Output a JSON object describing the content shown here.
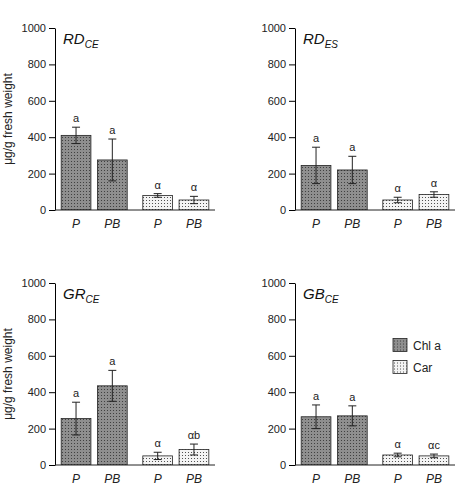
{
  "chart_data": [
    {
      "type": "bar",
      "title": "RD",
      "title_subscript": "CE",
      "y_label": "μg/g fresh weight",
      "categories": [
        "P",
        "PB"
      ],
      "ylim": [
        0,
        1000
      ],
      "yticks": [
        0,
        200,
        400,
        600,
        800,
        1000
      ],
      "grid": false,
      "series": [
        {
          "color": "#8f8f8f",
          "values": [
            410,
            275
          ],
          "errors": [
            45,
            115
          ],
          "letters": [
            "a",
            "a"
          ]
        },
        {
          "color": "#f4f4f4",
          "values": [
            80,
            55
          ],
          "errors": [
            10,
            20
          ],
          "letters": [
            "α",
            "α"
          ]
        }
      ]
    },
    {
      "type": "bar",
      "title": "RD",
      "title_subscript": "ES",
      "categories": [
        "P",
        "PB"
      ],
      "ylim": [
        0,
        1000
      ],
      "yticks": [
        0,
        200,
        400,
        600,
        800,
        1000
      ],
      "grid": false,
      "series": [
        {
          "color": "#8f8f8f",
          "values": [
            245,
            220
          ],
          "errors": [
            100,
            75
          ],
          "letters": [
            "a",
            "a"
          ]
        },
        {
          "color": "#f4f4f4",
          "values": [
            55,
            85
          ],
          "errors": [
            15,
            15
          ],
          "letters": [
            "α",
            "α"
          ]
        }
      ]
    },
    {
      "type": "bar",
      "title": "GR",
      "title_subscript": "CE",
      "y_label": "μg/g fresh weight",
      "categories": [
        "P",
        "PB"
      ],
      "ylim": [
        0,
        1000
      ],
      "yticks": [
        0,
        200,
        400,
        600,
        800,
        1000
      ],
      "grid": false,
      "series": [
        {
          "color": "#8f8f8f",
          "values": [
            255,
            435
          ],
          "errors": [
            90,
            85
          ],
          "letters": [
            "a",
            "a"
          ]
        },
        {
          "color": "#f4f4f4",
          "values": [
            50,
            85
          ],
          "errors": [
            20,
            30
          ],
          "letters": [
            "α",
            "αb"
          ]
        }
      ]
    },
    {
      "type": "bar",
      "title": "GB",
      "title_subscript": "CE",
      "legend": "right",
      "categories": [
        "P",
        "PB"
      ],
      "ylim": [
        0,
        1000
      ],
      "yticks": [
        0,
        200,
        400,
        600,
        800,
        1000
      ],
      "grid": false,
      "series": [
        {
          "name": "Chl a",
          "color": "#8f8f8f",
          "values": [
            265,
            270
          ],
          "errors": [
            65,
            55
          ],
          "letters": [
            "a",
            "a"
          ]
        },
        {
          "name": "Car",
          "color": "#f4f4f4",
          "values": [
            55,
            50
          ],
          "errors": [
            10,
            10
          ],
          "letters": [
            "α",
            "αc"
          ]
        }
      ]
    }
  ]
}
